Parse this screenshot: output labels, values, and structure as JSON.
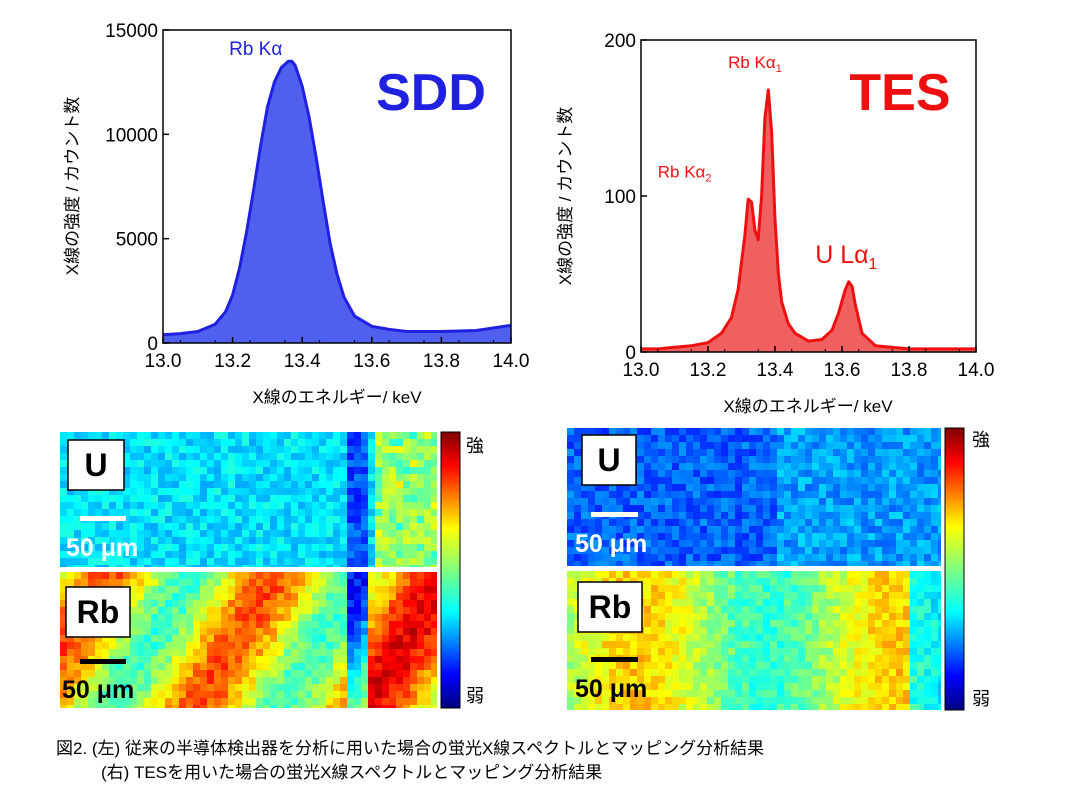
{
  "chart_data": [
    {
      "type": "area",
      "xlabel": "X線のエネルギー/ keV",
      "ylabel": "X線の強度 / カウント数",
      "xlim": [
        13.0,
        14.0
      ],
      "ylim": [
        0,
        15000
      ],
      "xticks": [
        "13.0",
        "13.2",
        "13.4",
        "13.6",
        "13.8",
        "14.0"
      ],
      "yticks": [
        "0",
        "5000",
        "10000",
        "15000"
      ],
      "detector_label": "SDD",
      "color": "#2020e0",
      "fill": "#5060ee",
      "peak_labels": [
        {
          "text": "Rb Kα",
          "x": 13.19,
          "y": 13800
        }
      ],
      "series": [
        {
          "x": [
            13.0,
            13.05,
            13.1,
            13.15,
            13.18,
            13.2,
            13.22,
            13.24,
            13.26,
            13.28,
            13.3,
            13.32,
            13.34,
            13.36,
            13.37,
            13.38,
            13.4,
            13.42,
            13.44,
            13.46,
            13.48,
            13.5,
            13.52,
            13.55,
            13.6,
            13.65,
            13.7,
            13.8,
            13.9,
            14.0
          ],
          "values": [
            400,
            450,
            550,
            900,
            1500,
            2300,
            3600,
            5300,
            7300,
            9400,
            11300,
            12500,
            13200,
            13500,
            13500,
            13300,
            12300,
            10800,
            8900,
            6800,
            4800,
            3300,
            2200,
            1300,
            800,
            650,
            550,
            550,
            600,
            850
          ]
        }
      ]
    },
    {
      "type": "area",
      "xlabel": "X線のエネルギー/ keV",
      "ylabel": "X線の強度 / カウント数",
      "xlim": [
        13.0,
        14.0
      ],
      "ylim": [
        0,
        200
      ],
      "xticks": [
        "13.0",
        "13.2",
        "13.4",
        "13.6",
        "13.8",
        "14.0"
      ],
      "yticks": [
        "0",
        "100",
        "200"
      ],
      "detector_label": "TES",
      "color": "#ee1010",
      "fill": "#f06060",
      "peak_labels": [
        {
          "text": "Rb Kα",
          "sub": "1",
          "x": 13.26,
          "y": 182,
          "size": 17
        },
        {
          "text": "Rb Kα",
          "sub": "2",
          "x": 13.05,
          "y": 112,
          "size": 17
        },
        {
          "text": "U Lα",
          "sub": "1",
          "x": 13.52,
          "y": 57,
          "size": 25
        }
      ],
      "series": [
        {
          "x": [
            13.0,
            13.05,
            13.1,
            13.15,
            13.2,
            13.24,
            13.27,
            13.29,
            13.31,
            13.32,
            13.33,
            13.34,
            13.35,
            13.36,
            13.37,
            13.38,
            13.39,
            13.4,
            13.41,
            13.42,
            13.44,
            13.46,
            13.5,
            13.54,
            13.57,
            13.59,
            13.61,
            13.62,
            13.63,
            13.64,
            13.66,
            13.7,
            13.8,
            13.9,
            14.0
          ],
          "values": [
            2,
            2,
            3,
            4,
            6,
            12,
            22,
            40,
            75,
            98,
            96,
            78,
            72,
            100,
            150,
            168,
            140,
            85,
            50,
            32,
            18,
            12,
            7,
            8,
            14,
            25,
            40,
            45,
            42,
            30,
            12,
            4,
            2,
            2,
            2
          ]
        }
      ]
    }
  ],
  "maps": [
    {
      "panel": "left",
      "colorbar_high": "強",
      "colorbar_low": "弱",
      "rows": [
        {
          "element": "U",
          "scalebar": "50 μm"
        },
        {
          "element": "Rb",
          "scalebar": "50 μm"
        }
      ]
    },
    {
      "panel": "right",
      "colorbar_high": "強",
      "colorbar_low": "弱",
      "rows": [
        {
          "element": "U",
          "scalebar": "50 μm"
        },
        {
          "element": "Rb",
          "scalebar": "50 μm"
        }
      ]
    }
  ],
  "caption": {
    "line1": "図2. (左) 従来の半導体検出器を分析に用いた場合の蛍光X線スペクトルとマッピング分析結果",
    "line2": "(右) TESを用いた場合の蛍光X線スペクトルとマッピング分析結果"
  }
}
